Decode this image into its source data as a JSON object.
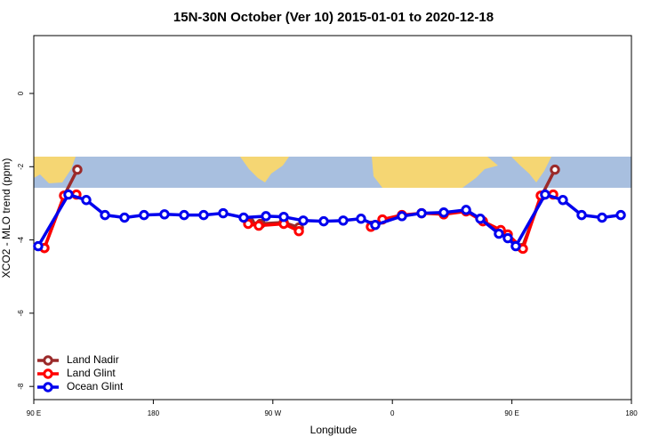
{
  "chart_data": {
    "type": "line",
    "title": "15N-30N October (Ver 10)   2015-01-01 to 2020-12-18",
    "x_label": "Longitude",
    "y_label": "XCO2 - MLO trend (ppm)",
    "xlim": [
      90,
      540
    ],
    "ylim": [
      -8.36,
      1.58
    ],
    "xticks": [
      {
        "value": 90,
        "label": "90 E"
      },
      {
        "value": 180,
        "label": "180"
      },
      {
        "value": 270,
        "label": "90 W"
      },
      {
        "value": 360,
        "label": "0"
      },
      {
        "value": 450,
        "label": "90 E"
      },
      {
        "value": 540,
        "label": "180"
      }
    ],
    "yticks": [
      0,
      -2,
      -4,
      -6,
      -8
    ],
    "legend": "bottom-left",
    "series": [
      {
        "name": "Land Nadir",
        "color": "#9b2a2a",
        "x": [
          98,
          112.8,
          122.8,
          null,
          252.7,
          260.8,
          278.2,
          289.6,
          null,
          344.5,
          null,
          457.6,
          472.4,
          482.4
        ],
        "values": [
          -4.22,
          -2.79,
          -2.08,
          null,
          -3.52,
          -3.56,
          -3.52,
          -3.66,
          null,
          -3.61,
          null,
          -4.22,
          -2.79,
          -2.08
        ]
      },
      {
        "name": "Land Glint",
        "color": "#ff0000",
        "x": [
          98,
          112.8,
          122.1,
          null,
          251.4,
          259.4,
          278.2,
          289.6,
          null,
          343.8,
          352.5,
          367.2,
          382,
          398.7,
          415.5,
          428.2,
          441.6,
          446.9,
          458.3,
          471.7,
          481.1
        ],
        "values": [
          -4.22,
          -2.79,
          -2.76,
          null,
          -3.56,
          -3.61,
          -3.56,
          -3.76,
          null,
          -3.64,
          -3.44,
          -3.32,
          -3.27,
          -3.3,
          -3.22,
          -3.49,
          -3.73,
          -3.85,
          -4.24,
          -2.79,
          -2.76
        ]
      },
      {
        "name": "Ocean Glint",
        "color": "#0000ee",
        "x": [
          93.3,
          116.1,
          129.5,
          143.6,
          158.3,
          173,
          188.4,
          203.2,
          217.9,
          232.6,
          248,
          264.8,
          278.2,
          292.9,
          308.3,
          323,
          336.4,
          347.1,
          367.2,
          382,
          398.7,
          415.5,
          426.2,
          440.2,
          446.9,
          452.9,
          475,
          488.4,
          502.5,
          517.9,
          532
        ],
        "values": [
          -4.17,
          -2.76,
          -2.91,
          -3.32,
          -3.39,
          -3.32,
          -3.3,
          -3.32,
          -3.32,
          -3.27,
          -3.39,
          -3.35,
          -3.37,
          -3.47,
          -3.49,
          -3.47,
          -3.42,
          -3.59,
          -3.35,
          -3.27,
          -3.25,
          -3.18,
          -3.42,
          -3.83,
          -3.95,
          -4.17,
          -2.76,
          -2.91,
          -3.32,
          -3.39,
          -3.32
        ]
      }
    ]
  }
}
